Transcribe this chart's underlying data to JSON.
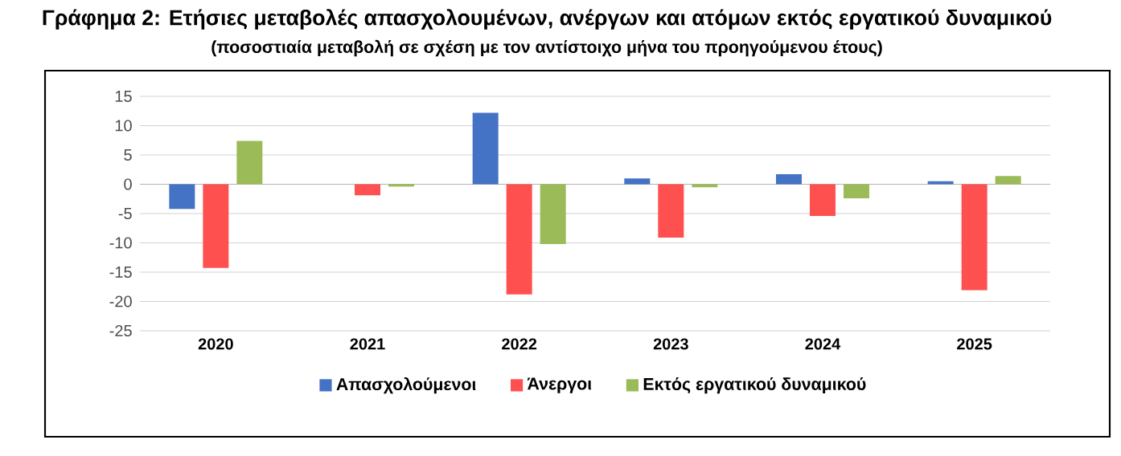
{
  "chart_data": {
    "type": "bar",
    "title": "Γράφημα 2: Ετήσιες μεταβολές απασχολουμένων, ανέργων και ατόμων εκτός εργατικού δυναμικού",
    "subtitle": "(ποσοστιαία μεταβολή σε σχέση με τον αντίστοιχο μήνα του προηγούμενου έτους)",
    "categories": [
      "2020",
      "2021",
      "2022",
      "2023",
      "2024",
      "2025"
    ],
    "series": [
      {
        "name": "Απασχολούμενοι",
        "color": "#4472c4",
        "values": [
          -4.2,
          0,
          12.2,
          1.0,
          1.7,
          0.5
        ]
      },
      {
        "name": "Άνεργοι",
        "color": "#ff5050",
        "values": [
          -14.3,
          -1.9,
          -18.8,
          -9.1,
          -5.4,
          -18.1
        ]
      },
      {
        "name": "Εκτός εργατικού δυναμικού",
        "color": "#9bbb59",
        "values": [
          7.4,
          -0.4,
          -10.2,
          -0.5,
          -2.4,
          1.4
        ]
      }
    ],
    "ylim": [
      -25,
      15
    ],
    "yticks": [
      -25,
      -20,
      -15,
      -10,
      -5,
      0,
      5,
      10,
      15
    ],
    "grid": "y",
    "legend": "bottom"
  }
}
